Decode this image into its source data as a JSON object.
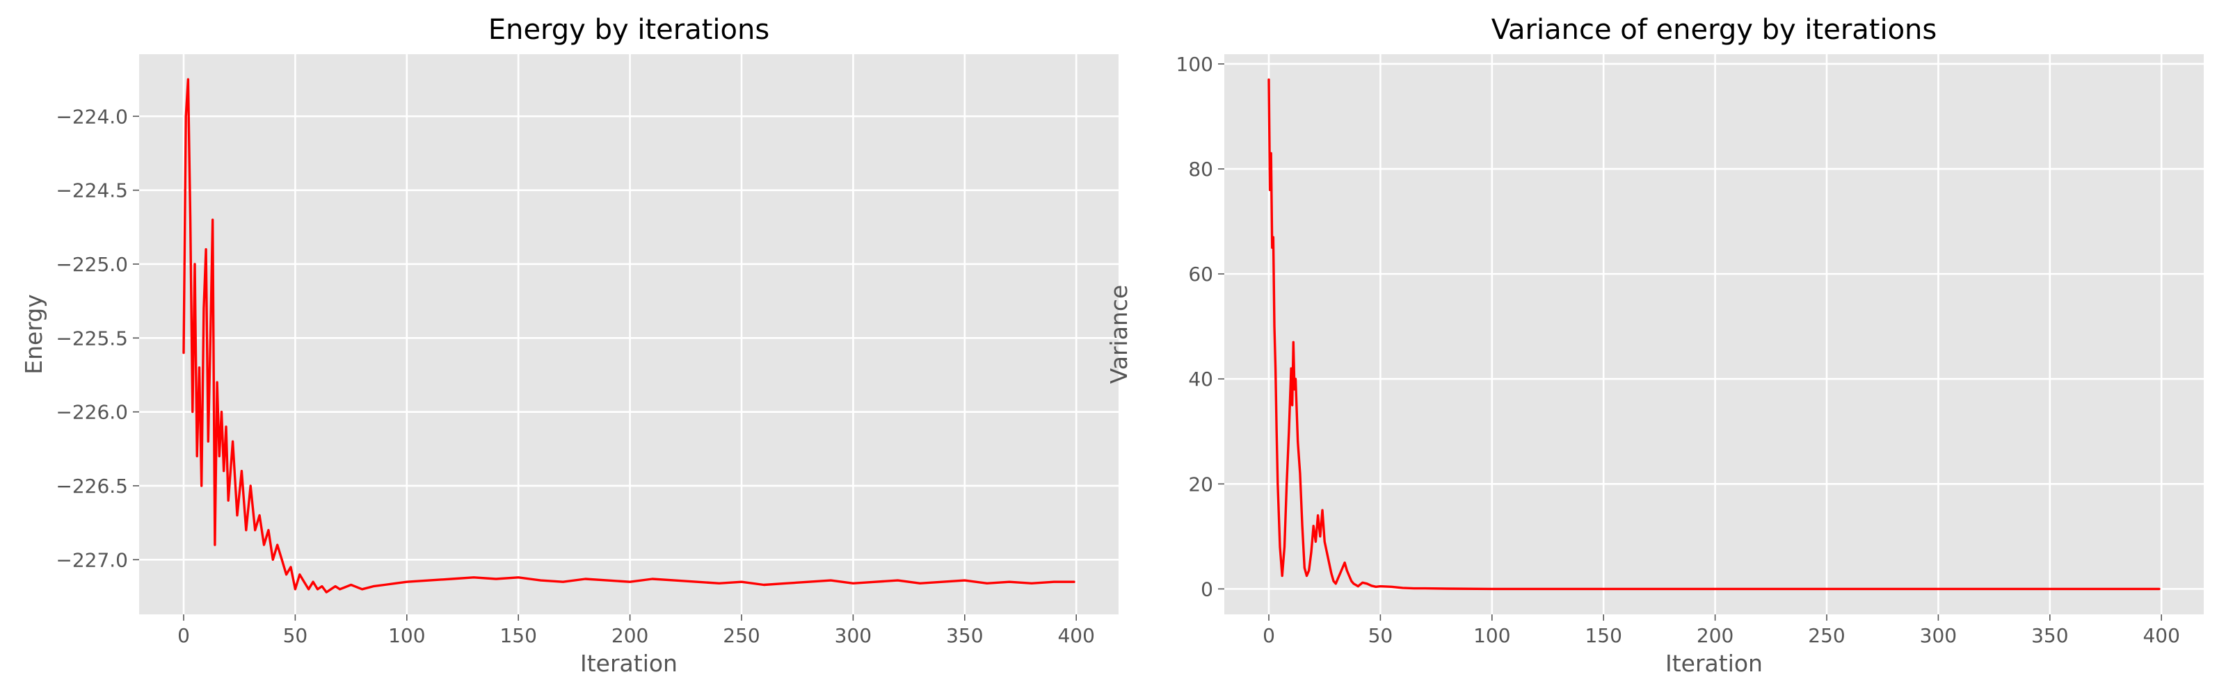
{
  "chart_data": [
    {
      "type": "line",
      "title": "Energy by iterations",
      "xlabel": "Iteration",
      "ylabel": "Energy",
      "xlim": [
        -19.95,
        418.95
      ],
      "ylim": [
        -227.37,
        -223.58
      ],
      "xticks": [
        0,
        50,
        100,
        150,
        200,
        250,
        300,
        350,
        400
      ],
      "xtick_labels": [
        "0",
        "50",
        "100",
        "150",
        "200",
        "250",
        "300",
        "350",
        "400"
      ],
      "yticks": [
        -224.0,
        -224.5,
        -225.0,
        -225.5,
        -226.0,
        -226.5,
        -227.0
      ],
      "ytick_labels": [
        "−224.0",
        "−224.5",
        "−225.0",
        "−225.5",
        "−226.0",
        "−226.5",
        "−227.0"
      ],
      "grid": true,
      "color": "#ff0000",
      "series": [
        {
          "x": [
            0,
            1,
            2,
            3,
            4,
            5,
            6,
            7,
            8,
            9,
            10,
            11,
            12,
            13,
            14,
            15,
            16,
            17,
            18,
            19,
            20,
            22,
            24,
            26,
            28,
            30,
            32,
            34,
            36,
            38,
            40,
            42,
            44,
            46,
            48,
            50,
            52,
            54,
            56,
            58,
            60,
            62,
            64,
            66,
            68,
            70,
            75,
            80,
            85,
            90,
            95,
            100,
            110,
            120,
            130,
            140,
            150,
            160,
            170,
            180,
            190,
            200,
            210,
            220,
            230,
            240,
            250,
            260,
            270,
            280,
            290,
            300,
            310,
            320,
            330,
            340,
            350,
            360,
            370,
            380,
            390,
            399
          ],
          "values": [
            -225.6,
            -224.0,
            -223.75,
            -224.7,
            -226.0,
            -225.0,
            -226.3,
            -225.7,
            -226.5,
            -225.3,
            -224.9,
            -226.2,
            -225.5,
            -224.7,
            -226.9,
            -225.8,
            -226.3,
            -226.0,
            -226.4,
            -226.1,
            -226.6,
            -226.2,
            -226.7,
            -226.4,
            -226.8,
            -226.5,
            -226.8,
            -226.7,
            -226.9,
            -226.8,
            -227.0,
            -226.9,
            -227.0,
            -227.1,
            -227.05,
            -227.2,
            -227.1,
            -227.15,
            -227.2,
            -227.15,
            -227.2,
            -227.18,
            -227.22,
            -227.2,
            -227.18,
            -227.2,
            -227.17,
            -227.2,
            -227.18,
            -227.17,
            -227.16,
            -227.15,
            -227.14,
            -227.13,
            -227.12,
            -227.13,
            -227.12,
            -227.14,
            -227.15,
            -227.13,
            -227.14,
            -227.15,
            -227.13,
            -227.14,
            -227.15,
            -227.16,
            -227.15,
            -227.17,
            -227.16,
            -227.15,
            -227.14,
            -227.16,
            -227.15,
            -227.14,
            -227.16,
            -227.15,
            -227.14,
            -227.16,
            -227.15,
            -227.16,
            -227.15,
            -227.15
          ]
        }
      ]
    },
    {
      "type": "line",
      "title": "Variance of energy by iterations",
      "xlabel": "Iteration",
      "ylabel": "Variance",
      "xlim": [
        -19.95,
        418.95
      ],
      "ylim": [
        -4.85,
        101.85
      ],
      "xticks": [
        0,
        50,
        100,
        150,
        200,
        250,
        300,
        350,
        400
      ],
      "xtick_labels": [
        "0",
        "50",
        "100",
        "150",
        "200",
        "250",
        "300",
        "350",
        "400"
      ],
      "yticks": [
        0,
        20,
        40,
        60,
        80,
        100
      ],
      "ytick_labels": [
        "0",
        "20",
        "40",
        "60",
        "80",
        "100"
      ],
      "grid": true,
      "color": "#ff0000",
      "series": [
        {
          "x": [
            0,
            0.5,
            1,
            1.5,
            2,
            2.5,
            3,
            3.5,
            4,
            5,
            6,
            7,
            8,
            9,
            10,
            10.5,
            11,
            11.5,
            12,
            13,
            14,
            15,
            16,
            17,
            18,
            19,
            20,
            21,
            22,
            23,
            24,
            25,
            26,
            27,
            28,
            29,
            30,
            31,
            32,
            33,
            34,
            35,
            36,
            37,
            38,
            40,
            42,
            44,
            46,
            48,
            50,
            55,
            60,
            65,
            70,
            80,
            100,
            150,
            200,
            250,
            300,
            350,
            399
          ],
          "values": [
            97,
            76,
            83,
            65,
            67,
            50,
            42,
            30,
            20,
            8,
            2.5,
            8,
            20,
            30,
            42,
            35,
            47,
            38,
            40,
            28,
            22,
            12,
            4,
            2.5,
            3.5,
            7,
            12,
            9,
            14,
            10,
            15,
            9,
            7,
            5,
            3,
            1.5,
            1,
            2,
            3,
            4,
            5,
            3.5,
            2.5,
            1.5,
            1,
            0.5,
            1.2,
            1.0,
            0.6,
            0.4,
            0.5,
            0.4,
            0.2,
            0.1,
            0.1,
            0.05,
            0,
            0,
            0,
            0,
            0,
            0,
            0
          ]
        }
      ]
    }
  ]
}
